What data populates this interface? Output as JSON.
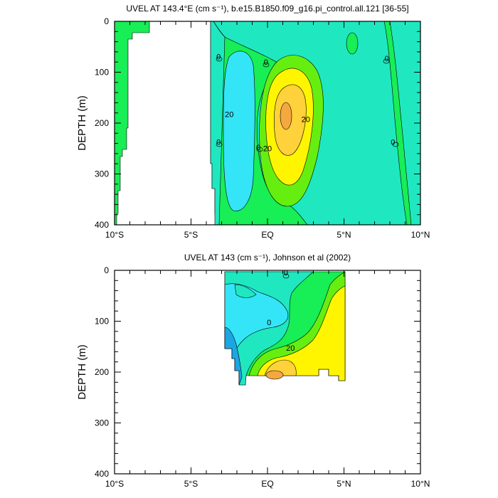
{
  "chart_data": [
    {
      "type": "heatmap",
      "title": "UVEL AT 143.4°E (cm s⁻¹), b.e15.B1850.f09_g16.pi_control.all.121 [36-55]",
      "ylabel": "DEPTH (m)",
      "xlim": [
        -10,
        10
      ],
      "ylim": [
        400,
        0
      ],
      "xticks": [
        {
          "value": -10,
          "label": "10°S"
        },
        {
          "value": -5,
          "label": "5°S"
        },
        {
          "value": 0,
          "label": "EQ"
        },
        {
          "value": 5,
          "label": "5°N"
        },
        {
          "value": 10,
          "label": "10°N"
        }
      ],
      "yticks": [
        0,
        100,
        200,
        300,
        400
      ],
      "contour_labels": [
        {
          "text": "20",
          "lon": -2.5,
          "depth": 188
        },
        {
          "text": "20",
          "lon": 2.5,
          "depth": 198
        },
        {
          "text": "20",
          "lon": 0.0,
          "depth": 255
        },
        {
          "text": "0",
          "lon": -3.2,
          "depth": 75
        },
        {
          "text": "0",
          "lon": -0.1,
          "depth": 85
        },
        {
          "text": "0",
          "lon": -3.2,
          "depth": 243
        },
        {
          "text": "0",
          "lon": -0.6,
          "depth": 253
        },
        {
          "text": "0",
          "lon": 7.8,
          "depth": 78
        },
        {
          "text": "0",
          "lon": 8.2,
          "depth": 243
        }
      ]
    },
    {
      "type": "heatmap",
      "title": "UVEL AT 143 (cm s⁻¹), Johnson et al (2002)",
      "ylabel": "DEPTH (m)",
      "xlim": [
        -10,
        10
      ],
      "ylim": [
        400,
        0
      ],
      "xticks": [
        {
          "value": -10,
          "label": "10°S"
        },
        {
          "value": -5,
          "label": "5°S"
        },
        {
          "value": 0,
          "label": "EQ"
        },
        {
          "value": 5,
          "label": "5°N"
        },
        {
          "value": 10,
          "label": "10°N"
        }
      ],
      "yticks": [
        0,
        100,
        200,
        300,
        400
      ],
      "contour_labels": [
        {
          "text": "0",
          "lon": 0.1,
          "depth": 108
        },
        {
          "text": "20",
          "lon": 1.5,
          "depth": 158
        },
        {
          "text": "0",
          "lon": 1.2,
          "depth": 10
        }
      ]
    }
  ],
  "colors": {
    "strong_westward": "#1ba6e3",
    "westward": "#33e5f7",
    "weak": "#1fe8c0",
    "weak_eastward": "#18ee55",
    "eastward": "#66ee11",
    "moderate": "#fff500",
    "strong": "#ffd13a",
    "core": "#f5a840"
  }
}
